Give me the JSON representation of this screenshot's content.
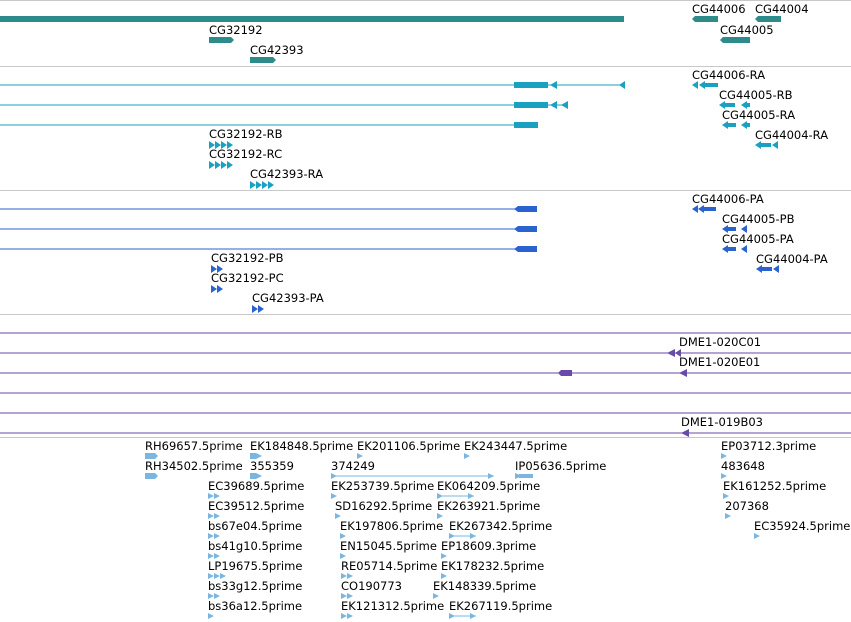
{
  "colors": {
    "gene": "#2e8b8b",
    "transcript": "#1aa0c0",
    "protein": "#2a62d0",
    "clone": "#6a4aa8",
    "est": "#7ab6e0",
    "separator": "#c8c8c8"
  },
  "genes_track": {
    "labels": [
      "CG32192",
      "CG42393",
      "CG44006",
      "CG44004",
      "CG44005"
    ]
  },
  "transcripts_track": {
    "labels": [
      "CG44006-RA",
      "CG44005-RB",
      "CG44005-RA",
      "CG44004-RA",
      "CG32192-RB",
      "CG32192-RC",
      "CG42393-RA"
    ]
  },
  "proteins_track": {
    "labels": [
      "CG44006-PA",
      "CG44005-PB",
      "CG44005-PA",
      "CG44004-PA",
      "CG32192-PB",
      "CG32192-PC",
      "CG42393-PA"
    ]
  },
  "clones_track": {
    "labels": [
      "DME1-020C01",
      "DME1-020E01",
      "DME1-019B03"
    ]
  },
  "est_track": {
    "labels": [
      "RH69657.5prime",
      "EK184848.5prime",
      "EK201106.5prime",
      "EK243447.5prime",
      "RH34502.5prime",
      "355359",
      "374249",
      "IP05636.5prime",
      "EC39689.5prime",
      "EK253739.5prime",
      "EK064209.5prime",
      "EC39512.5prime",
      "SD16292.5prime",
      "EK263921.5prime",
      "bs67e04.5prime",
      "EK197806.5prime",
      "EK267342.5prime",
      "bs41g10.5prime",
      "EN15045.5prime",
      "EP18609.3prime",
      "LP19675.5prime",
      "RE05714.5prime",
      "EK178232.5prime",
      "bs33g12.5prime",
      "CO190773",
      "EK148339.5prime",
      "bs36a12.5prime",
      "EK121312.5prime",
      "EK267119.5prime",
      "EP03712.3prime",
      "483648",
      "EK161252.5prime",
      "207368",
      "EC35924.5prime"
    ]
  }
}
